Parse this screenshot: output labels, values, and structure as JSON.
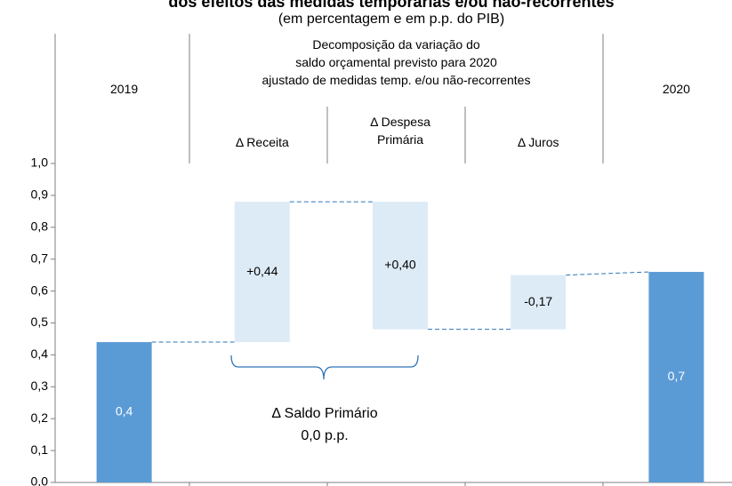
{
  "chart_data": {
    "type": "waterfall",
    "title": "dos efeitos das medidas temporárias e/ou não-recorrentes",
    "subtitle": "(em percentagem e em p.p. do PIB)",
    "group_header": [
      "Decomposição da variação do",
      "saldo orçamental previsto para 2020",
      "ajustado de medidas temp. e/ou não-recorrentes"
    ],
    "categories": [
      "2019",
      "Δ Receita",
      "Δ Despesa Primária",
      "Δ Juros",
      "2020"
    ],
    "measures": [
      "total",
      "relative",
      "relative",
      "relative",
      "total"
    ],
    "values": [
      0.44,
      0.44,
      -0.4,
      0.17,
      0.66
    ],
    "value_labels": [
      "0,4",
      "+0,44",
      "+0,40",
      "-0,17",
      "0,7"
    ],
    "colors": {
      "total": "#5b9bd5",
      "relative": "#ddebf7"
    },
    "annotation": [
      "Δ Saldo Primário",
      "0,0 p.p."
    ],
    "ylim": [
      0,
      1
    ],
    "yticks": [
      {
        "value": 0,
        "label": "0,0"
      },
      {
        "value": 0.1,
        "label": "0,1"
      },
      {
        "value": 0.2,
        "label": "0,2"
      },
      {
        "value": 0.3,
        "label": "0,3"
      },
      {
        "value": 0.4,
        "label": "0,4"
      },
      {
        "value": 0.5,
        "label": "0,5"
      },
      {
        "value": 0.6,
        "label": "0,6"
      },
      {
        "value": 0.7,
        "label": "0,7"
      },
      {
        "value": 0.8,
        "label": "0,8"
      },
      {
        "value": 0.9,
        "label": "0,9"
      },
      {
        "value": 1,
        "label": "1,0"
      }
    ]
  }
}
